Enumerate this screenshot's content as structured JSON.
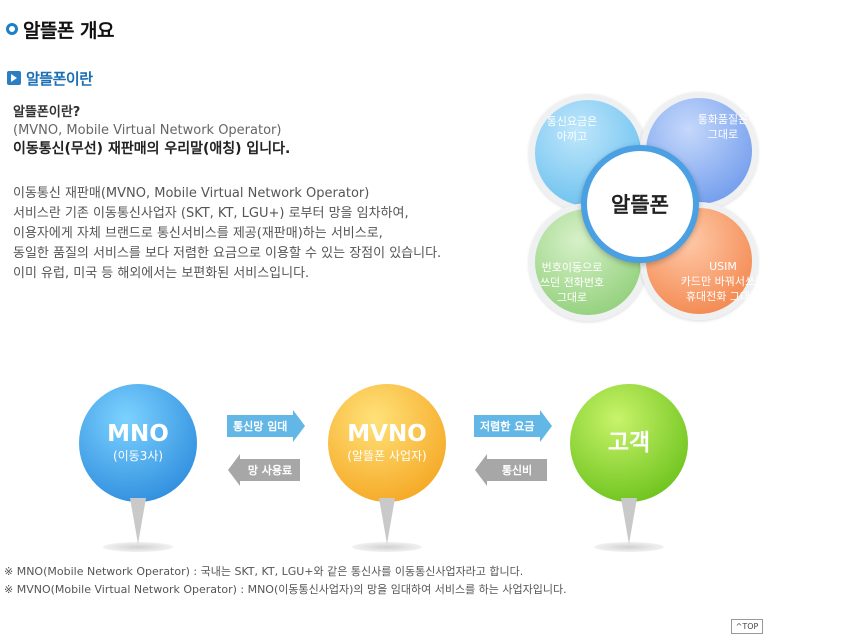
{
  "header": {
    "title": "알뜰폰 개요"
  },
  "section": {
    "title": "알뜰폰이란"
  },
  "intro": {
    "question": "알뜰폰이란?",
    "english": "(MVNO, Mobile Virtual Network Operator)",
    "definition": "이동통신(무선) 재판매의 우리말(애칭) 입니다."
  },
  "description": [
    "이동통신 재판매(MVNO, Mobile Virtual Network Operator)",
    "서비스란 기존 이동통신사업자 (SKT, KT, LGU+) 로부터 망을 임차하여,",
    "이용자에게 자체 브랜드로 통신서비스를 제공(재판매)하는 서비스로,",
    "동일한 품질의 서비스를 보다 저렴한 요금으로 이용할 수 있는 장점이 있습니다.",
    "이미 유럽, 미국 등 해외에서는 보편화된 서비스입니다."
  ],
  "clover": {
    "center": "알뜰폰",
    "petals": [
      {
        "line1": "통신요금은",
        "line2": "아끼고",
        "line3": ""
      },
      {
        "line1": "통화품질은",
        "line2": "그대로",
        "line3": ""
      },
      {
        "line1": "번호이동으로",
        "line2": "쓰던 전화번호",
        "line3": "그대로"
      },
      {
        "line1": "USIM",
        "line2": "카드만 바꿔서쓰면",
        "line3": "휴대전화 그대로"
      }
    ]
  },
  "flow": {
    "mno": {
      "name": "MNO",
      "sub": "(이동3사)"
    },
    "mvno": {
      "name": "MVNO",
      "sub": "(알뜰폰 사업자)"
    },
    "customer": {
      "name": "고객"
    },
    "arrows": {
      "mno_to_mvno": "통신망 임대",
      "mvno_to_mno": "망 사용료",
      "mvno_to_customer": "저렴한 요금",
      "customer_to_mvno": "통신비"
    }
  },
  "notes": [
    "※ MNO(Mobile Network Operator) : 국내는 SKT, KT, LGU+와 같은 통신사를 이동통신사업자라고 합니다.",
    "※ MVNO(Mobile Virtual Network Operator) : MNO(이동통신사업자)의 망을 임대하여 서비스를 하는 사업자입니다."
  ],
  "top_button": "TOP",
  "colors": {
    "accent": "#1b80c8",
    "mno": "#1e7ed6",
    "mvno": "#f39a10",
    "customer": "#58b80c"
  }
}
